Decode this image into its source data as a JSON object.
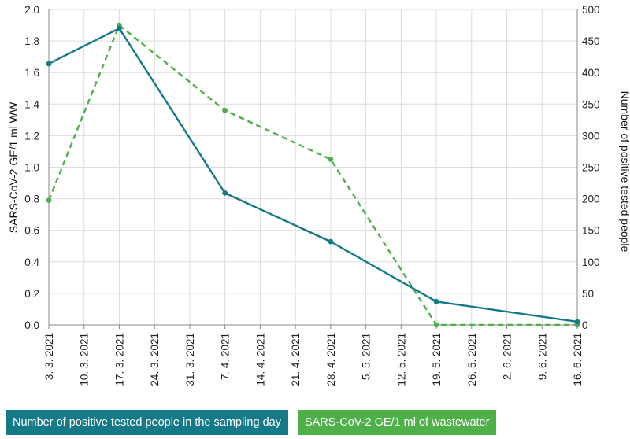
{
  "chart_data": {
    "type": "line",
    "x_tick_labels": [
      "3. 3. 2021",
      "10. 3. 2021",
      "17. 3. 2021",
      "24. 3. 2021",
      "31. 3. 2021",
      "7. 4. 2021",
      "14. 4. 2021",
      "21. 4. 2021",
      "28. 4. 2021",
      "5. 5. 2021",
      "12. 5. 2021",
      "19. 5. 2021",
      "26. 5. 2021",
      "2. 6. 2021",
      "9. 6. 2021",
      "16. 6. 2021"
    ],
    "y_left": {
      "label": "SARS-CoV-2 GE/1 ml WW",
      "ylim": [
        0,
        2.0
      ],
      "tick_labels": [
        "0.0",
        "0.2",
        "0.4",
        "0.6",
        "0.8",
        "1.0",
        "1.2",
        "1.4",
        "1.6",
        "1.8",
        "2.0"
      ]
    },
    "y_right": {
      "label": "Number of positive tested people",
      "ylim": [
        0,
        500
      ],
      "tick_labels": [
        "0",
        "50",
        "100",
        "150",
        "200",
        "250",
        "300",
        "350",
        "400",
        "450",
        "500"
      ]
    },
    "series": [
      {
        "name": "Number of positive tested people in the sampling day",
        "axis": "right",
        "color": "#157a87",
        "style": "solid",
        "points": [
          {
            "x": "3. 3. 2021",
            "y": 414
          },
          {
            "x": "17. 3. 2021",
            "y": 470
          },
          {
            "x": "7. 4. 2021",
            "y": 209
          },
          {
            "x": "28. 4. 2021",
            "y": 132
          },
          {
            "x": "19. 5. 2021",
            "y": 37
          },
          {
            "x": "16. 6. 2021",
            "y": 5
          }
        ]
      },
      {
        "name": "SARS-CoV-2 GE/1 ml of wastewater",
        "axis": "left",
        "color": "#4fb04a",
        "style": "dashed",
        "points": [
          {
            "x": "3. 3. 2021",
            "y": 0.79
          },
          {
            "x": "17. 3. 2021",
            "y": 1.9
          },
          {
            "x": "7. 4. 2021",
            "y": 1.36
          },
          {
            "x": "28. 4. 2021",
            "y": 1.05
          },
          {
            "x": "19. 5. 2021",
            "y": 0.0
          },
          {
            "x": "16. 6. 2021",
            "y": 0.0
          }
        ]
      }
    ],
    "grid": true,
    "legend_position": "bottom-left"
  }
}
